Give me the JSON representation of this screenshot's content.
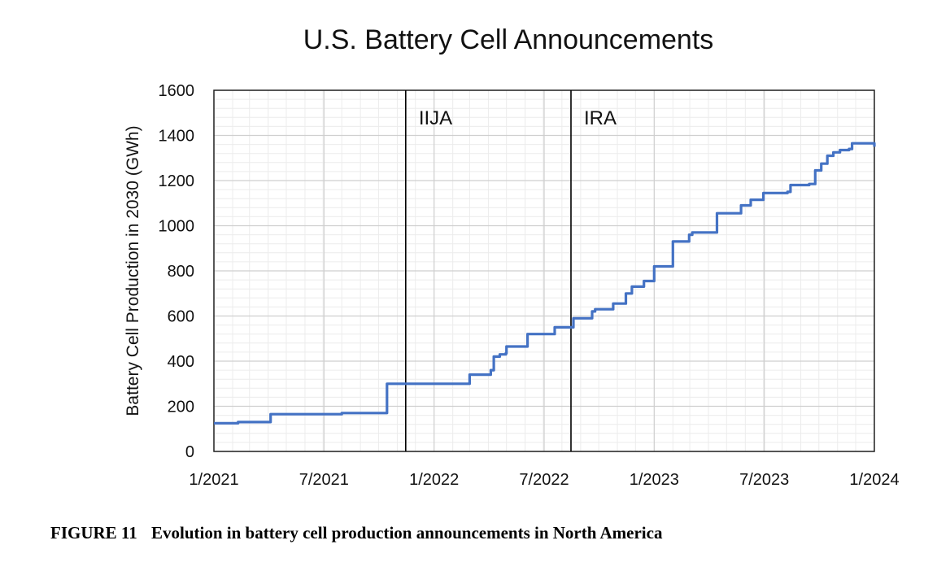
{
  "caption": {
    "label": "FIGURE 11",
    "text": "Evolution in battery cell production announcements in North America"
  },
  "chart_data": {
    "type": "line",
    "title": "U.S. Battery Cell Announcements",
    "xlabel": "",
    "ylabel": "Battery Cell Production in 2030 (GWh)",
    "xlim": [
      "2021-01-01",
      "2024-01-01"
    ],
    "ylim": [
      0,
      1600
    ],
    "x_ticks": [
      "1/2021",
      "7/2021",
      "1/2022",
      "7/2022",
      "1/2023",
      "7/2023",
      "1/2024"
    ],
    "y_ticks": [
      0,
      200,
      400,
      600,
      800,
      1000,
      1200,
      1400,
      1600
    ],
    "grid": true,
    "legend": "none",
    "line_color": "#4472C4",
    "annotations": [
      {
        "label": "IIJA",
        "x": "2021-11-15"
      },
      {
        "label": "IRA",
        "x": "2022-08-16"
      }
    ],
    "series": [
      {
        "step": true,
        "x": [
          "2021-01-01",
          "2021-02-10",
          "2021-04-05",
          "2021-08-01",
          "2021-10-15",
          "2022-03-01",
          "2022-04-05",
          "2022-04-10",
          "2022-04-20",
          "2022-04-30",
          "2022-05-01",
          "2022-06-05",
          "2022-07-20",
          "2022-08-20",
          "2022-09-20",
          "2022-09-25",
          "2022-10-01",
          "2022-10-25",
          "2022-11-15",
          "2022-11-20",
          "2022-11-25",
          "2022-12-15",
          "2023-01-01",
          "2023-01-05",
          "2023-02-01",
          "2023-02-25",
          "2023-02-28",
          "2023-03-05",
          "2023-04-15",
          "2023-05-25",
          "2023-06-10",
          "2023-07-01",
          "2023-08-10",
          "2023-08-15",
          "2023-09-15",
          "2023-09-25",
          "2023-10-05",
          "2023-10-15",
          "2023-10-25",
          "2023-11-05",
          "2023-11-20",
          "2023-11-25",
          "2024-01-01"
        ],
        "values": [
          125,
          130,
          165,
          170,
          300,
          340,
          360,
          420,
          430,
          435,
          465,
          520,
          550,
          590,
          620,
          630,
          630,
          655,
          700,
          700,
          730,
          755,
          820,
          820,
          930,
          930,
          960,
          970,
          1055,
          1090,
          1115,
          1145,
          1150,
          1180,
          1185,
          1245,
          1275,
          1310,
          1325,
          1335,
          1340,
          1365,
          1350
        ]
      }
    ]
  }
}
